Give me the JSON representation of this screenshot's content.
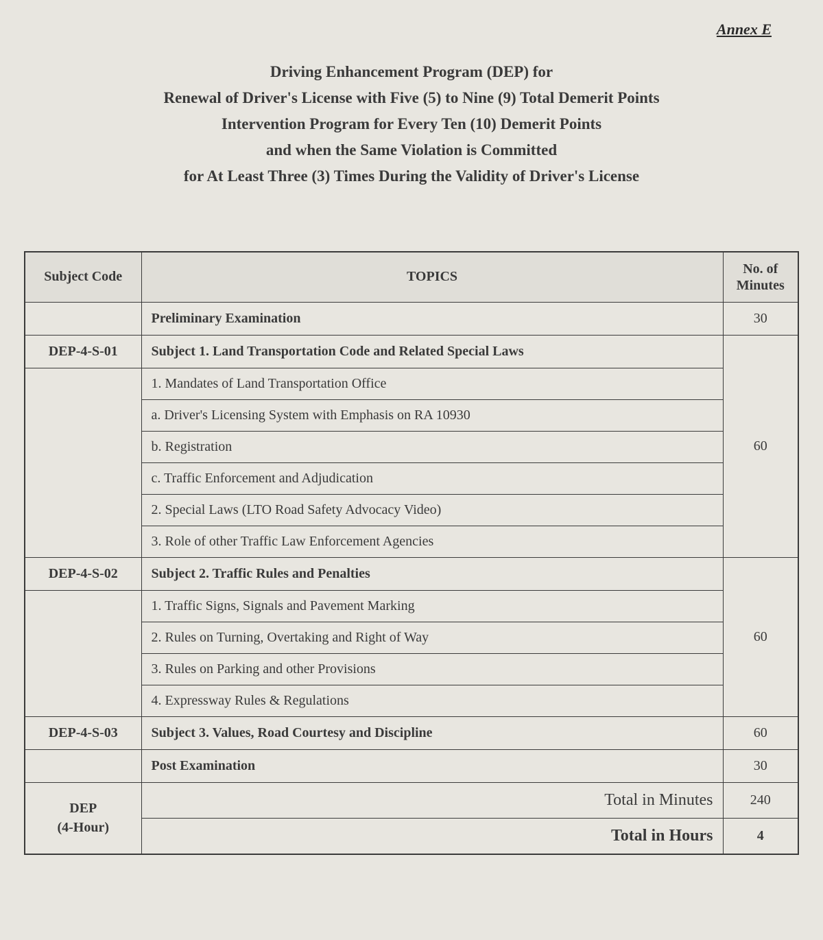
{
  "annex": "Annex  E",
  "heading": {
    "l1": "Driving Enhancement Program (DEP) for",
    "l2": "Renewal of Driver's License with Five (5) to Nine (9) Total Demerit Points",
    "l3": "Intervention Program  for Every Ten (10) Demerit Points",
    "l4": "and when the Same Violation is Committed",
    "l5": "for  At Least Three (3) Times During the Validity of Driver's License"
  },
  "table": {
    "headers": {
      "code": "Subject Code",
      "topics": "TOPICS",
      "minutes": "No. of Minutes"
    },
    "prelim": {
      "label": "Preliminary Examination",
      "minutes": "30"
    },
    "s1": {
      "code": "DEP-4-S-01",
      "title": "Subject 1.   Land Transportation Code and Related Special Laws",
      "minutes": "60",
      "items": {
        "i1": "1. Mandates of Land Transportation Office",
        "i1a": "a. Driver's Licensing System with Emphasis on RA 10930",
        "i1b": "b. Registration",
        "i1c": "c. Traffic Enforcement and Adjudication",
        "i2": "2. Special Laws (LTO Road Safety Advocacy Video)",
        "i3": "3. Role of other Traffic Law Enforcement Agencies"
      }
    },
    "s2": {
      "code": "DEP-4-S-02",
      "title": "Subject 2.   Traffic Rules and Penalties",
      "minutes": "60",
      "items": {
        "i1": "1.  Traffic Signs,  Signals and Pavement Marking",
        "i2": "2.  Rules  on Turning,  Overtaking  and Right of Way",
        "i3": "3.  Rules on Parking and other Provisions",
        "i4": "4.  Expressway Rules & Regulations"
      }
    },
    "s3": {
      "code": "DEP-4-S-03",
      "title": "Subject 3.   Values, Road Courtesy and Discipline",
      "minutes": "60"
    },
    "post": {
      "label": "Post Examination",
      "minutes": "30"
    },
    "totals": {
      "dep_line1": "DEP",
      "dep_line2": "(4-Hour)",
      "min_label": "Total in Minutes",
      "min_val": "240",
      "hr_label": "Total in Hours",
      "hr_val": "4"
    }
  },
  "style": {
    "bg": "#e8e6e0",
    "text": "#3a3a3a",
    "border": "#3a3a3a",
    "header_bg": "#e0ded8"
  }
}
